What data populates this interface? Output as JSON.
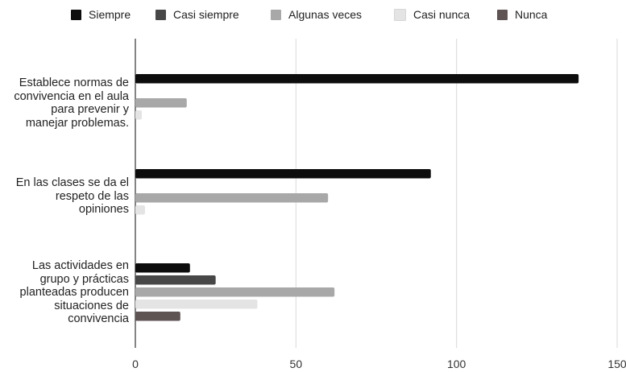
{
  "chart_data": {
    "type": "bar",
    "orientation": "horizontal",
    "title": "",
    "xlabel": "",
    "ylabel": "",
    "xlim": [
      0,
      150
    ],
    "x_ticks": [
      "0",
      "50",
      "100",
      "150"
    ],
    "grid": true,
    "legend_position": "top",
    "categories": [
      "Establece normas de convivencia en el aula para prevenir y manejar problemas.",
      "En las clases se da el respeto de las opiniones",
      "Las actividades en grupo y prácticas planteadas producen situaciones de convivencia"
    ],
    "series": [
      {
        "name": "Siempre",
        "color": "#0d0d0d",
        "values": [
          138,
          92,
          17
        ]
      },
      {
        "name": "Casi siempre",
        "color": "#474747",
        "values": [
          0,
          0,
          25
        ]
      },
      {
        "name": "Algunas veces",
        "color": "#a8a8a8",
        "values": [
          16,
          60,
          62
        ]
      },
      {
        "name": "Casi nunca",
        "color": "#e4e4e4",
        "values": [
          2,
          3,
          38
        ]
      },
      {
        "name": "Nunca",
        "color": "#5f5454",
        "values": [
          0,
          0,
          14
        ]
      }
    ]
  }
}
